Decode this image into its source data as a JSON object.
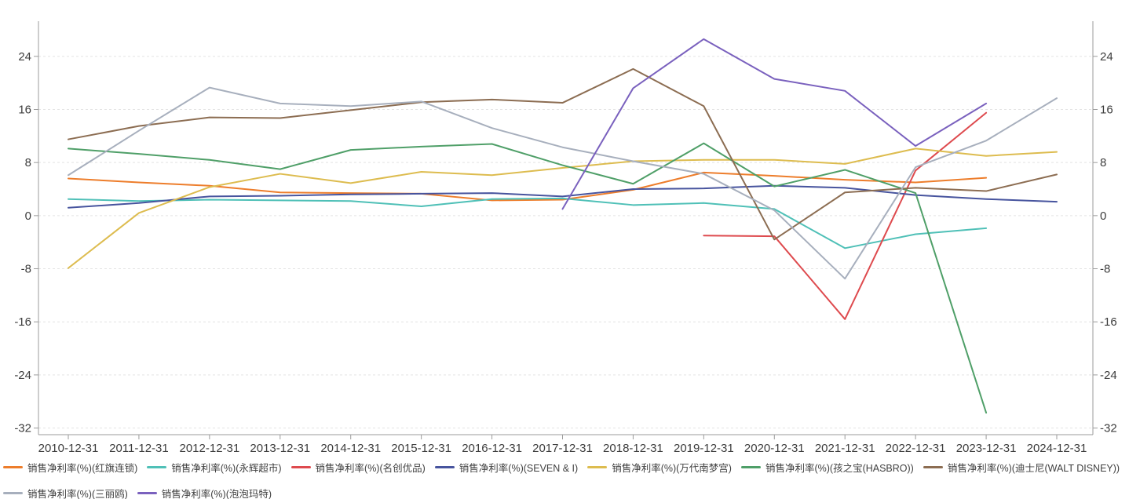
{
  "chart": {
    "background": "#ffffff",
    "grid_color": "#e3e3e3",
    "axis_color": "#9b9b9b",
    "tick_label_color": "#3c3c3c",
    "legend_text_color": "#404040",
    "y_ticks": [
      24,
      16,
      8,
      0,
      -8,
      -16,
      -24,
      -32
    ]
  },
  "chart_data": {
    "type": "line",
    "title": "",
    "xlabel": "",
    "ylabel": "",
    "ylim": [
      -33,
      29.3
    ],
    "grid": "horizontal-dashed",
    "legend_position": "bottom",
    "x": [
      "2010-12-31",
      "2011-12-31",
      "2012-12-31",
      "2013-12-31",
      "2014-12-31",
      "2015-12-31",
      "2016-12-31",
      "2017-12-31",
      "2018-12-31",
      "2019-12-31",
      "2020-12-31",
      "2021-12-31",
      "2022-12-31",
      "2023-12-31",
      "2024-12-31"
    ],
    "series": [
      {
        "name": "销售净利率(%)(红旗连锁)",
        "color": "#ED7D2B",
        "values": [
          5.6,
          5.0,
          4.5,
          3.5,
          3.4,
          3.3,
          2.3,
          2.4,
          3.9,
          6.5,
          6.0,
          5.4,
          5.0,
          5.7,
          null
        ]
      },
      {
        "name": "销售净利率(%)(永辉超市)",
        "color": "#4FC0B7",
        "values": [
          2.5,
          2.2,
          2.4,
          2.3,
          2.2,
          1.4,
          2.5,
          2.6,
          1.6,
          1.9,
          1.0,
          -4.9,
          -2.8,
          -1.9,
          null
        ]
      },
      {
        "name": "销售净利率(%)(名创优品)",
        "color": "#DE4A4E",
        "values": [
          null,
          null,
          null,
          null,
          null,
          null,
          null,
          null,
          null,
          -3.0,
          -3.1,
          -15.6,
          6.8,
          15.5,
          null
        ]
      },
      {
        "name": "销售净利率(%)(SEVEN & I)",
        "color": "#47549E",
        "values": [
          1.2,
          1.9,
          2.9,
          3.0,
          3.2,
          3.3,
          3.4,
          2.9,
          4.0,
          4.1,
          4.5,
          4.2,
          3.1,
          2.5,
          2.1
        ]
      },
      {
        "name": "销售净利率(%)(万代南梦宫)",
        "color": "#DDBC4F",
        "values": [
          -7.9,
          0.4,
          4.3,
          6.3,
          4.9,
          6.6,
          6.1,
          7.2,
          8.2,
          8.4,
          8.4,
          7.8,
          10.1,
          9.0,
          9.6
        ]
      },
      {
        "name": "销售净利率(%)(孩之宝(HASBRO))",
        "color": "#4F9F68",
        "values": [
          10.1,
          9.3,
          8.4,
          7.0,
          9.9,
          10.4,
          10.8,
          7.6,
          4.8,
          10.9,
          4.4,
          6.9,
          3.4,
          -29.7,
          null
        ]
      },
      {
        "name": "销售净利率(%)(迪士尼(WALT DISNEY))",
        "color": "#8C6D52",
        "values": [
          11.5,
          13.5,
          14.8,
          14.7,
          15.9,
          17.1,
          17.5,
          17.0,
          22.1,
          16.5,
          -3.6,
          3.5,
          4.2,
          3.7,
          6.2
        ]
      },
      {
        "name": "销售净利率(%)(三丽鸥)",
        "color": "#A7AFBD",
        "values": [
          6.1,
          12.8,
          19.3,
          16.9,
          16.5,
          17.2,
          13.2,
          10.3,
          8.2,
          6.3,
          0.8,
          -9.5,
          7.3,
          11.3,
          17.7
        ]
      },
      {
        "name": "销售净利率(%)(泡泡玛特)",
        "color": "#7A61BE",
        "values": [
          null,
          null,
          null,
          null,
          null,
          null,
          null,
          1.0,
          19.2,
          26.6,
          20.6,
          18.8,
          10.5,
          16.9,
          null
        ]
      }
    ],
    "legend_wrap_after": 7
  }
}
